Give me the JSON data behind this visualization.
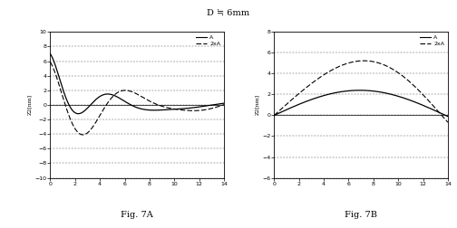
{
  "title": "D ≒ 6mm",
  "fig7A": {
    "ylabel": "Z2[nm]",
    "xlim": [
      0,
      14
    ],
    "ylim": [
      -10,
      10
    ],
    "yticks": [
      -10,
      -8,
      -6,
      -4,
      -2,
      0,
      2,
      4,
      6,
      8,
      10
    ],
    "xticks": [
      0,
      2,
      4,
      6,
      8,
      10,
      12,
      14
    ],
    "caption": "Fig. 7A"
  },
  "fig7B": {
    "ylabel": "Z2[nm]",
    "xlim": [
      0,
      14
    ],
    "ylim": [
      -6,
      8
    ],
    "yticks": [
      -6,
      -4,
      -2,
      0,
      2,
      4,
      6,
      8
    ],
    "xticks": [
      0,
      2,
      4,
      6,
      8,
      10,
      12,
      14
    ],
    "caption": "Fig. 7B"
  },
  "legend_A": "A",
  "legend_2xA": "2xA",
  "bg_color": "#ffffff"
}
